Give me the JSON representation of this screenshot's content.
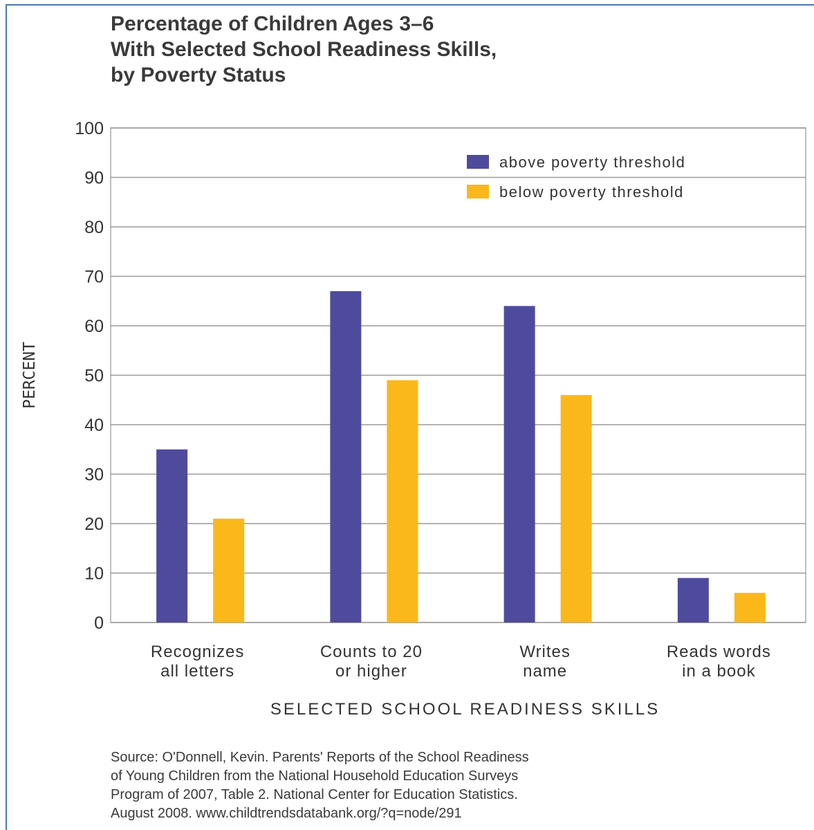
{
  "chart_data": {
    "type": "bar",
    "title": [
      "Percentage of Children Ages 3–6",
      "With Selected School Readiness Skills,",
      "by Poverty Status"
    ],
    "categories": [
      [
        "Recognizes",
        "all letters"
      ],
      [
        "Counts to 20",
        "or higher"
      ],
      [
        "Writes",
        "name"
      ],
      [
        "Reads words",
        "in a book"
      ]
    ],
    "series": [
      {
        "name": "above poverty threshold",
        "color": "#4f4b9c",
        "values": [
          35,
          67,
          64,
          9
        ]
      },
      {
        "name": "below poverty threshold",
        "color": "#fbb81b",
        "values": [
          21,
          49,
          46,
          6
        ]
      }
    ],
    "xlabel": "SELECTED SCHOOL READINESS SKILLS",
    "ylabel": "PERCENT",
    "ylim": [
      0,
      100
    ],
    "yticks": [
      0,
      10,
      20,
      30,
      40,
      50,
      60,
      70,
      80,
      90,
      100
    ],
    "grid": true,
    "legend_position": "top-right"
  },
  "source": [
    "Source: O'Donnell, Kevin. Parents' Reports of the School Readiness",
    "of Young Children from the National Household Education Surveys",
    "Program of 2007, Table 2. National Center for Education Statistics.",
    "August 2008. www.childtrendsdatabank.org/?q=node/291"
  ]
}
